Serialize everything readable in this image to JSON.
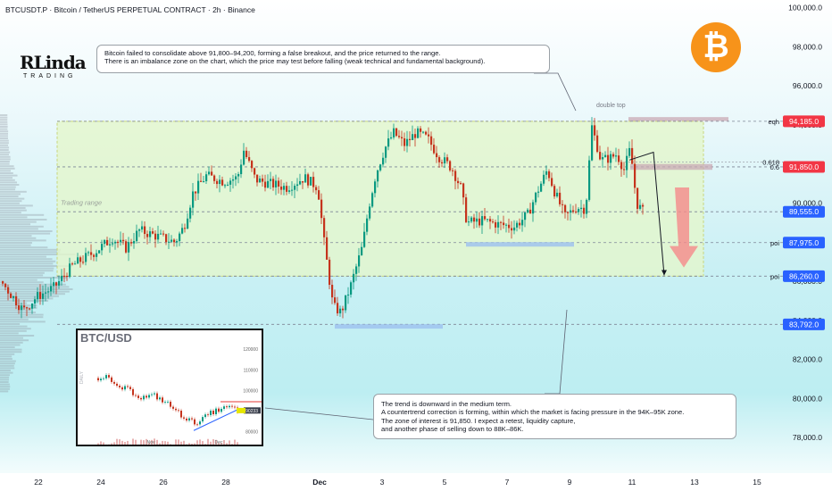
{
  "header": {
    "symbol_line": "BTCUSDT.P · Bitcoin / TetherUS PERPETUAL CONTRACT · 2h · Binance"
  },
  "logo": {
    "line1": "RLinda",
    "line2": "TRADING"
  },
  "badge": {
    "symbol": "₿",
    "color": "#f7931a"
  },
  "notes": {
    "top_line1": "Bitcoin failed to consolidate above 91,800–94,200, forming a false breakout, and the price returned to the range.",
    "top_line2": "There is an imbalance zone on the chart, which the price may test before falling (weak technical and fundamental background).",
    "bottom_line1": "The trend is downward in the medium term.",
    "bottom_line2": "A countertrend correction is forming, within which the market is facing pressure in the 94K–95K zone.",
    "bottom_line3": "The zone of interest is 91,850. I expect a retest, liquidity capture,",
    "bottom_line4": "and another phase of selling down to 88K–86K."
  },
  "inset": {
    "title": "BTC/USD",
    "side_label": "DAILY",
    "y_ticks": [
      "120000",
      "110000",
      "100000",
      "90233",
      "80000"
    ],
    "x_ticks": [
      "Nov",
      "Dec"
    ]
  },
  "chart_data": {
    "type": "candlestick",
    "title": "BTCUSDT.P · Bitcoin / TetherUS PERPETUAL CONTRACT · 2h · Binance",
    "ylim": [
      77000,
      100300
    ],
    "y_ticks": [
      78000,
      80000,
      82000,
      84000,
      86000,
      88000,
      90000,
      92000,
      94000,
      96000,
      98000,
      100000
    ],
    "y_tick_labels": [
      "78,000.0",
      "80,000.0",
      "82,000.0",
      "84,000.0",
      "86,000.0",
      "88,000.0",
      "90,000.0",
      "92,000.0",
      "94,000.0",
      "96,000.0",
      "98,000.0",
      "100,000.0"
    ],
    "x_tick_labels": [
      "22",
      "24",
      "26",
      "28",
      "Dec",
      "3",
      "5",
      "7",
      "9",
      "11",
      "13",
      "15"
    ],
    "up_color": "#089981",
    "down_color": "#c5341d",
    "path": [
      [
        0,
        86000
      ],
      [
        25,
        84500
      ],
      [
        40,
        85200
      ],
      [
        60,
        85700
      ],
      [
        80,
        86800
      ],
      [
        105,
        87500
      ],
      [
        125,
        88200
      ],
      [
        140,
        87700
      ],
      [
        155,
        88600
      ],
      [
        175,
        88300
      ],
      [
        195,
        88000
      ],
      [
        205,
        88800
      ],
      [
        215,
        90500
      ],
      [
        230,
        91400
      ],
      [
        250,
        91100
      ],
      [
        265,
        91300
      ],
      [
        272,
        92700
      ],
      [
        285,
        91200
      ],
      [
        300,
        91000
      ],
      [
        320,
        90800
      ],
      [
        340,
        91300
      ],
      [
        355,
        90800
      ],
      [
        362,
        88000
      ],
      [
        372,
        84700
      ],
      [
        381,
        84400
      ],
      [
        392,
        85800
      ],
      [
        405,
        87800
      ],
      [
        412,
        89800
      ],
      [
        420,
        91500
      ],
      [
        430,
        92800
      ],
      [
        440,
        93600
      ],
      [
        452,
        93000
      ],
      [
        465,
        93600
      ],
      [
        478,
        93300
      ],
      [
        490,
        92400
      ],
      [
        505,
        91800
      ],
      [
        515,
        90800
      ],
      [
        522,
        89000
      ],
      [
        540,
        89100
      ],
      [
        558,
        88900
      ],
      [
        575,
        88800
      ],
      [
        590,
        89400
      ],
      [
        600,
        90500
      ],
      [
        612,
        91700
      ],
      [
        620,
        90600
      ],
      [
        632,
        89300
      ],
      [
        645,
        89800
      ],
      [
        655,
        89700
      ],
      [
        662,
        93900
      ],
      [
        672,
        92200
      ],
      [
        682,
        92300
      ],
      [
        690,
        92500
      ],
      [
        698,
        91700
      ],
      [
        705,
        92800
      ],
      [
        712,
        90000
      ],
      [
        720,
        89500
      ]
    ],
    "price_labels": [
      {
        "value": 94185,
        "label": "94,185.0",
        "color": "#f23645",
        "tag": "eqh"
      },
      {
        "value": 91850,
        "label": "91,850.0",
        "color": "#f23645",
        "tag": "0.6"
      },
      {
        "value": 89555,
        "label": "89,555.0",
        "color": "#2962ff",
        "tag": ""
      },
      {
        "value": 87975,
        "label": "87,975.0",
        "color": "#2962ff",
        "tag": "poi"
      },
      {
        "value": 86260,
        "label": "86,260.0",
        "color": "#2962ff",
        "tag": "poi"
      },
      {
        "value": 83792,
        "label": "83,792.0",
        "color": "#2962ff",
        "tag": ""
      }
    ],
    "fib_labels": [
      "0.618",
      "0.6"
    ],
    "annotations": {
      "range": "Trading range",
      "double_top": "double top"
    },
    "range_zone": [
      86260,
      94185
    ],
    "imbalance_zone": [
      91700,
      92000
    ],
    "eqh_zone": [
      94200,
      94400
    ],
    "forecast_path": [
      [
        705,
        92200
      ],
      [
        732,
        92600
      ],
      [
        744,
        86300
      ]
    ],
    "target_arrow": [
      90800,
      86700
    ]
  }
}
